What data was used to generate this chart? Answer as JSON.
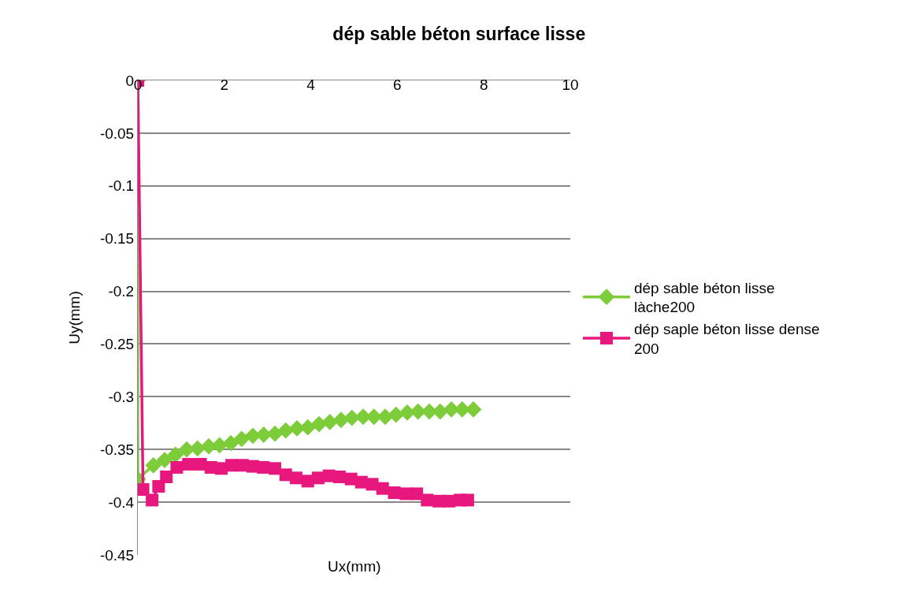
{
  "chart_data": {
    "type": "line",
    "title": "dép sable béton surface lisse",
    "xlabel": "Ux(mm)",
    "ylabel": "Uy(mm)",
    "xlim": [
      0,
      10
    ],
    "xticks": [
      0,
      2,
      4,
      6,
      8,
      10
    ],
    "ylim": [
      -0.45,
      0
    ],
    "yticks": [
      0,
      -0.05,
      -0.1,
      -0.15,
      -0.2,
      -0.25,
      -0.3,
      -0.35,
      -0.4,
      -0.45
    ],
    "grid": "y",
    "legend": "right",
    "series": [
      {
        "name": "dép sable béton lisse làche200",
        "color": "#7dcd3a",
        "marker": "diamond",
        "x": [
          0,
          0,
          0.36,
          0.62,
          0.87,
          1.13,
          1.38,
          1.64,
          1.89,
          2.15,
          2.4,
          2.66,
          2.91,
          3.17,
          3.42,
          3.68,
          3.93,
          4.19,
          4.44,
          4.7,
          4.95,
          5.21,
          5.46,
          5.72,
          5.97,
          6.23,
          6.48,
          6.74,
          6.99,
          7.25,
          7.5,
          7.76
        ],
        "values": [
          0,
          -0.378,
          -0.365,
          -0.36,
          -0.355,
          -0.35,
          -0.349,
          -0.347,
          -0.346,
          -0.344,
          -0.34,
          -0.337,
          -0.336,
          -0.335,
          -0.332,
          -0.33,
          -0.329,
          -0.326,
          -0.324,
          -0.322,
          -0.32,
          -0.319,
          -0.319,
          -0.319,
          -0.317,
          -0.315,
          -0.314,
          -0.314,
          -0.314,
          -0.312,
          -0.312,
          -0.312
        ]
      },
      {
        "name": "dép saple béton lisse dense 200",
        "color": "#e8177d",
        "marker": "square",
        "x": [
          0,
          0.12,
          0.33,
          0.48,
          0.66,
          0.9,
          1.17,
          1.45,
          1.69,
          1.93,
          2.17,
          2.42,
          2.66,
          2.9,
          3.17,
          3.42,
          3.66,
          3.93,
          4.17,
          4.42,
          4.66,
          4.93,
          5.17,
          5.42,
          5.66,
          5.93,
          6.2,
          6.45,
          6.69,
          6.96,
          7.2,
          7.45,
          7.63
        ],
        "values": [
          0,
          -0.388,
          -0.398,
          -0.385,
          -0.376,
          -0.367,
          -0.364,
          -0.364,
          -0.367,
          -0.368,
          -0.365,
          -0.365,
          -0.366,
          -0.367,
          -0.368,
          -0.374,
          -0.377,
          -0.38,
          -0.377,
          -0.375,
          -0.376,
          -0.378,
          -0.381,
          -0.383,
          -0.387,
          -0.391,
          -0.392,
          -0.392,
          -0.398,
          -0.399,
          -0.399,
          -0.398,
          -0.398
        ]
      }
    ]
  }
}
